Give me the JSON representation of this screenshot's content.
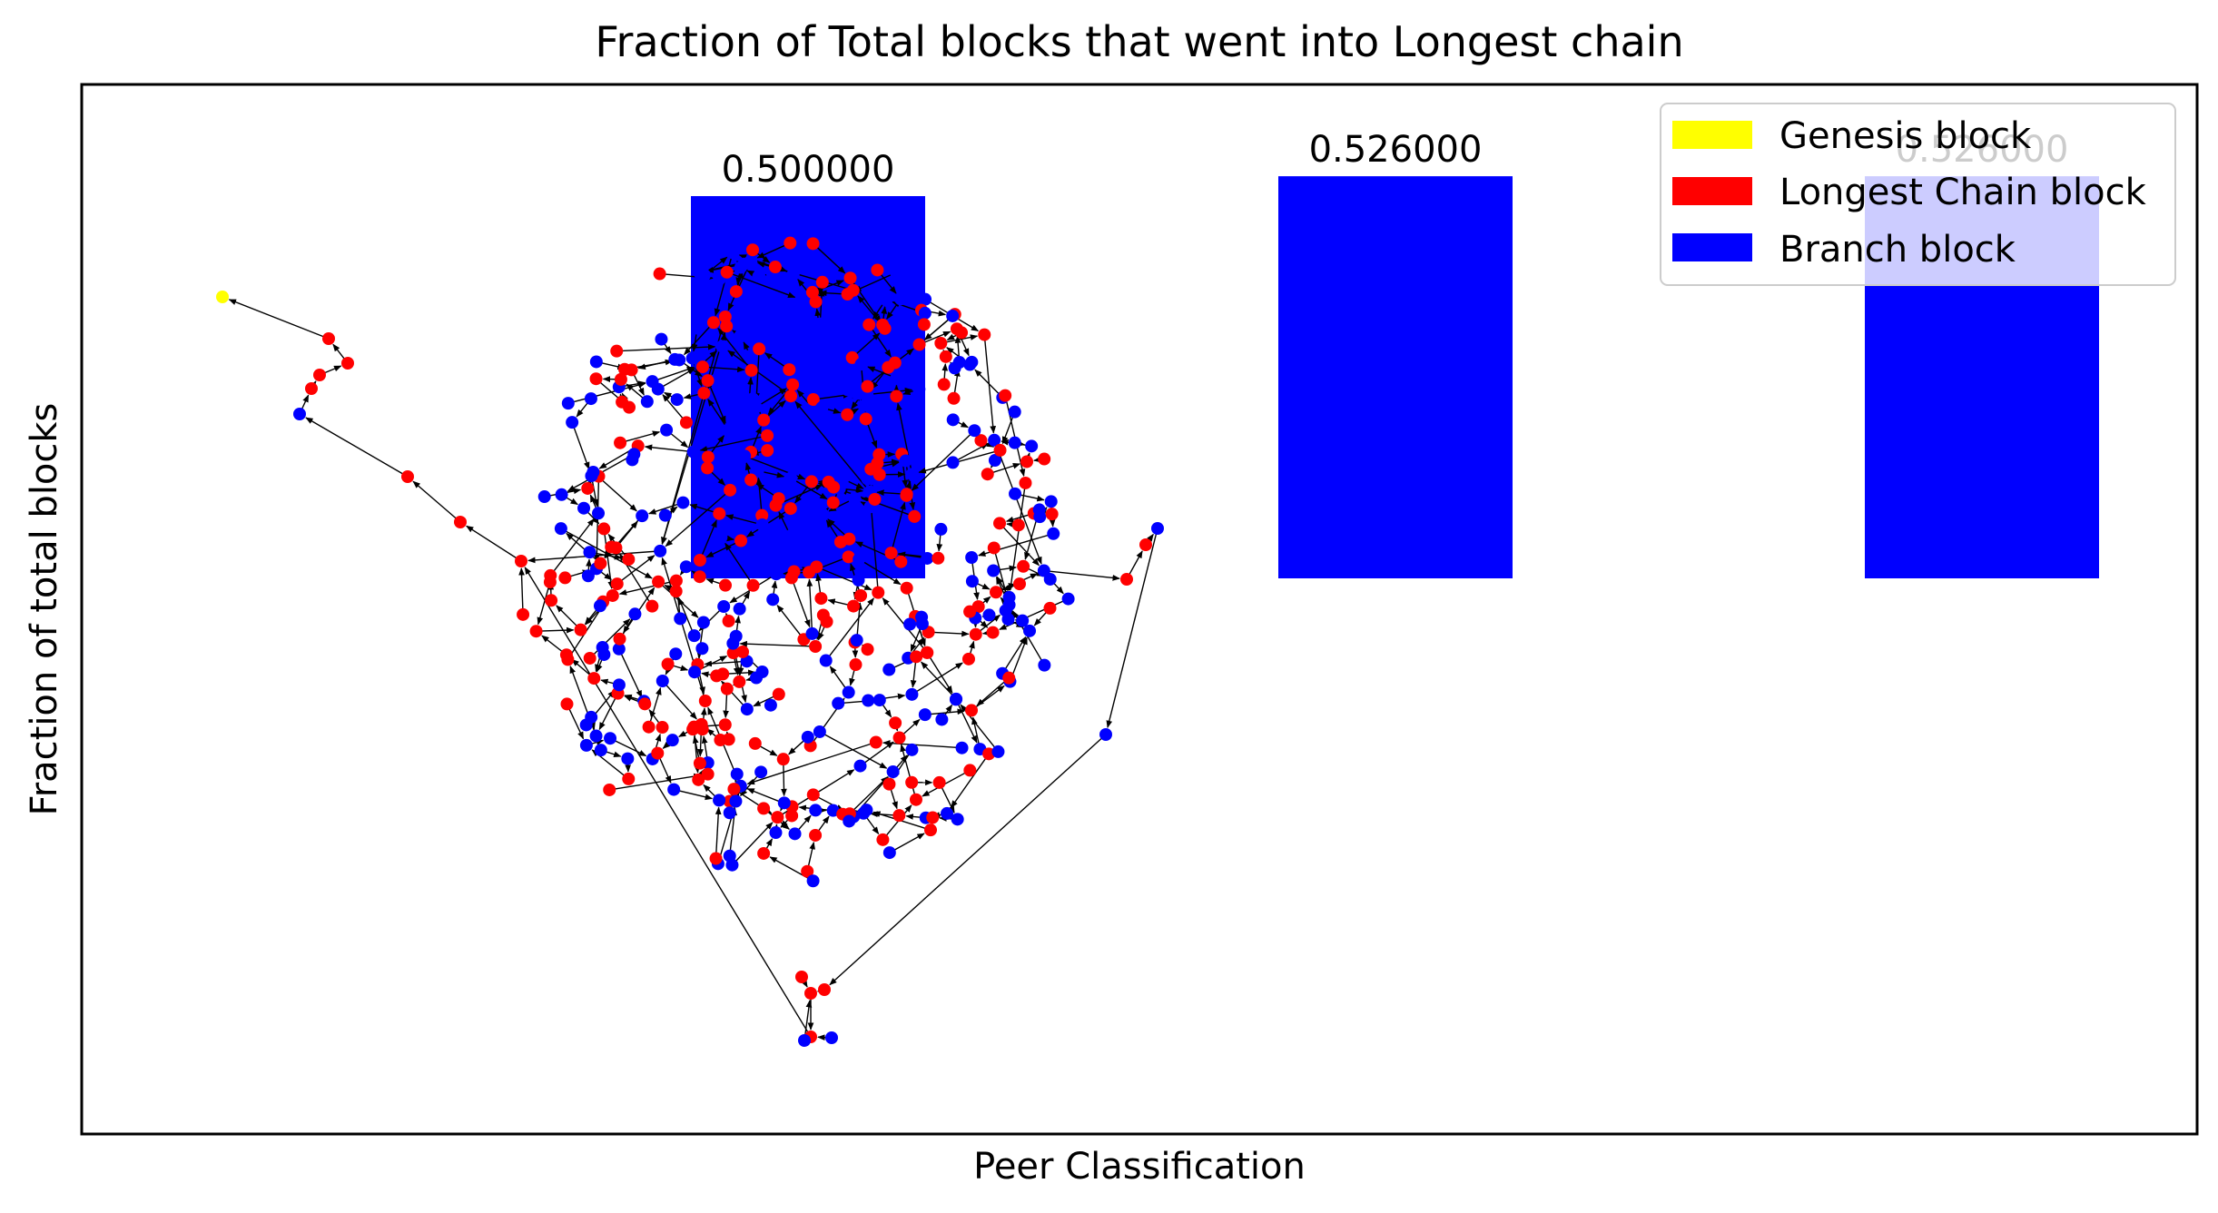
{
  "colors": {
    "genesis": "#ffff00",
    "longest": "#ff0000",
    "branch": "#0000ff",
    "edge": "#000000"
  },
  "chart_data": {
    "type": "bar",
    "title": "Fraction of Total blocks that went into Longest chain",
    "xlabel": "Peer Classification",
    "ylabel": "Fraction of total blocks",
    "ylim": [
      0,
      1.4
    ],
    "grid": false,
    "legend_position": "top-right",
    "categories": [
      "",
      "",
      ""
    ],
    "values": [
      0.5,
      0.526,
      0.526
    ],
    "value_labels": [
      "0.500000",
      "0.526000",
      "0.526000"
    ],
    "bar_color": "#0000ff",
    "legend": [
      {
        "label": "Genesis block",
        "color": "#ffff00"
      },
      {
        "label": "Longest Chain block",
        "color": "#ff0000"
      },
      {
        "label": "Branch block",
        "color": "#0000ff"
      }
    ],
    "overlay_graph": {
      "type": "directed tree of blocks",
      "genesis_nodes": 1,
      "node_categories": [
        "Genesis block",
        "Longest Chain block",
        "Branch block"
      ]
    }
  }
}
